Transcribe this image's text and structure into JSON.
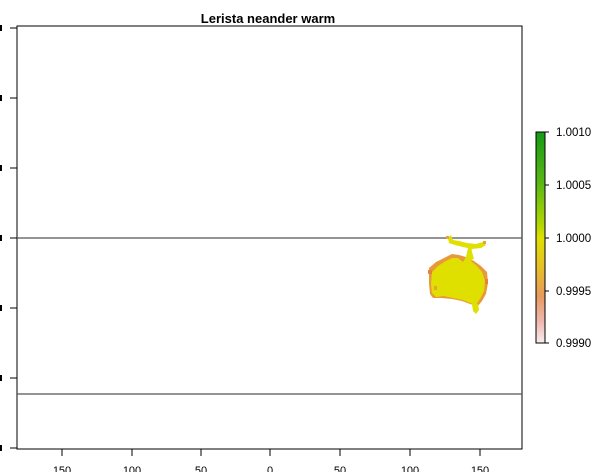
{
  "title": "Lerista neander warm",
  "map": {
    "x_axis_ticks": [
      "150",
      "100",
      "50",
      "0",
      "50",
      "100",
      "150"
    ],
    "x_range": [
      -180,
      180
    ],
    "y_range": [
      -90,
      90
    ],
    "reference_lines_lat": [
      0,
      -66
    ],
    "region": "Australia",
    "fill_color_main": "#dfe000",
    "fill_color_edge": "#e8a23a"
  },
  "legend": {
    "labels": [
      "1.0010",
      "1.0005",
      "1.0000",
      "0.9995",
      "0.9990"
    ],
    "colors_top_to_bottom": [
      "#149a14",
      "#4fb314",
      "#8ccd0a",
      "#dfe000",
      "#e7b43a",
      "#e89a8a",
      "#f5dede"
    ]
  }
}
